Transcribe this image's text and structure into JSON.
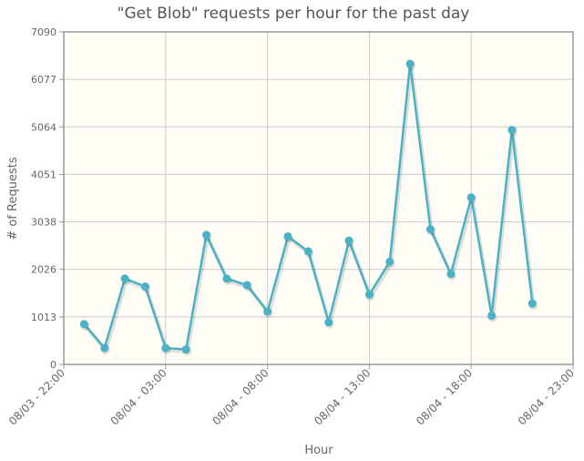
{
  "chart_data": {
    "type": "line",
    "title": "\"Get Blob\" requests per hour for the past day",
    "xlabel": "Hour",
    "ylabel": "# of Requests",
    "ylim": [
      0,
      7090
    ],
    "yticks": [
      "0",
      "1013",
      "2026",
      "3038",
      "4051",
      "5064",
      "6077",
      "7090"
    ],
    "xticks": [
      "08/03 - 22:00",
      "08/04 - 03:00",
      "08/04 - 08:00",
      "08/04 - 13:00",
      "08/04 - 18:00",
      "08/04 - 23:00"
    ],
    "xlim_hours": [
      0,
      25
    ],
    "grid": true,
    "colors": {
      "line": "#4bb2c5",
      "plot_bg": "#fffdf6",
      "grid": "#cccccc",
      "border": "#999999"
    },
    "series": [
      {
        "points": [
          {
            "hour": 1,
            "value": 860
          },
          {
            "hour": 2,
            "value": 350
          },
          {
            "hour": 3,
            "value": 1830
          },
          {
            "hour": 4,
            "value": 1660
          },
          {
            "hour": 5,
            "value": 350
          },
          {
            "hour": 6,
            "value": 320
          },
          {
            "hour": 7,
            "value": 2760
          },
          {
            "hour": 8,
            "value": 1830
          },
          {
            "hour": 9,
            "value": 1690
          },
          {
            "hour": 10,
            "value": 1130
          },
          {
            "hour": 11,
            "value": 2730
          },
          {
            "hour": 12,
            "value": 2410
          },
          {
            "hour": 13,
            "value": 900
          },
          {
            "hour": 14,
            "value": 2640
          },
          {
            "hour": 15,
            "value": 1490
          },
          {
            "hour": 16,
            "value": 2190
          },
          {
            "hour": 17,
            "value": 6410
          },
          {
            "hour": 18,
            "value": 2880
          },
          {
            "hour": 19,
            "value": 1930
          },
          {
            "hour": 20,
            "value": 3560
          },
          {
            "hour": 21,
            "value": 1040
          },
          {
            "hour": 22,
            "value": 5000
          },
          {
            "hour": 23,
            "value": 1300
          }
        ]
      }
    ]
  }
}
